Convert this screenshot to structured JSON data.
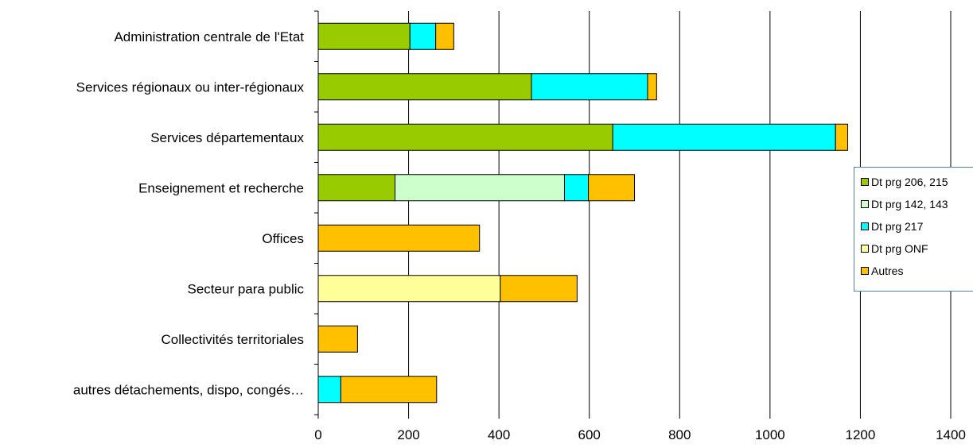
{
  "chart_data": {
    "type": "bar",
    "orientation": "horizontal",
    "stacked": true,
    "categories": [
      "Administration centrale de l'Etat",
      "Services régionaux ou inter-régionaux",
      "Services départementaux",
      "Enseignement et recherche",
      "Offices",
      "Secteur para public",
      "Collectivités territoriales",
      "autres détachements, dispo, congés…"
    ],
    "series": [
      {
        "name": "Dt prg 206, 215",
        "color": "#99cc00",
        "values": [
          203,
          472,
          652,
          170,
          0,
          0,
          0,
          0
        ]
      },
      {
        "name": "Dt prg 142, 143",
        "color": "#ccffcc",
        "values": [
          0,
          0,
          0,
          375,
          0,
          0,
          0,
          0
        ]
      },
      {
        "name": "Dt prg 217",
        "color": "#00ffff",
        "values": [
          57,
          257,
          493,
          53,
          0,
          0,
          0,
          50
        ]
      },
      {
        "name": "Dt prg ONF",
        "color": "#ffff99",
        "values": [
          0,
          0,
          0,
          0,
          0,
          403,
          0,
          0
        ]
      },
      {
        "name": "Autres",
        "color": "#ffc000",
        "values": [
          40,
          20,
          27,
          102,
          357,
          170,
          87,
          212
        ]
      }
    ],
    "xlim": [
      0,
      1400
    ],
    "xticks": [
      "0",
      "200",
      "400",
      "600",
      "800",
      "1000",
      "1200",
      "1400"
    ],
    "grid": "vertical",
    "legend_position": "right"
  }
}
